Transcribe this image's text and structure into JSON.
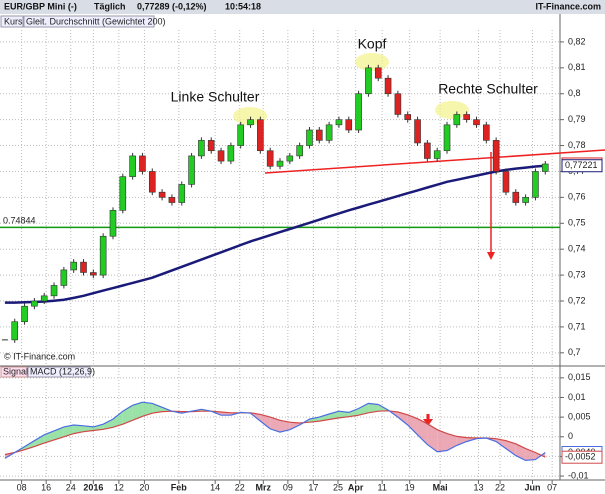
{
  "header": {
    "title": "EUR/GBP Mini (-)",
    "period": "Täglich",
    "quote": "0,77289 (-0,12%)",
    "time": "10:54:18",
    "brand": "IT-Finance.com"
  },
  "chart_data": [
    {
      "type": "candlestick",
      "x": [
        0,
        1,
        2,
        3,
        4,
        5,
        6,
        7,
        8,
        9,
        10,
        11,
        12,
        13,
        14,
        15,
        16,
        17,
        18,
        19,
        20,
        21,
        22,
        23,
        24,
        25,
        26,
        27,
        28,
        29,
        30,
        31,
        32,
        33,
        34,
        35,
        36,
        37,
        38,
        39,
        40,
        41,
        42,
        43,
        44,
        45,
        46,
        47,
        48,
        49,
        50,
        51,
        52,
        53,
        54,
        55
      ],
      "xlim": [
        -0.5,
        56.5
      ],
      "xticks": [
        {
          "value": 1.7,
          "label": "08"
        },
        {
          "value": 4.2,
          "label": "16"
        },
        {
          "value": 6.7,
          "label": "24"
        },
        {
          "value": 9.0,
          "label": "2016"
        },
        {
          "value": 11.6,
          "label": "12"
        },
        {
          "value": 14.2,
          "label": "20"
        },
        {
          "value": 17.7,
          "label": "Feb"
        },
        {
          "value": 21.4,
          "label": "14"
        },
        {
          "value": 23.9,
          "label": "22"
        },
        {
          "value": 26.3,
          "label": "Mrz"
        },
        {
          "value": 28.8,
          "label": "09"
        },
        {
          "value": 31.4,
          "label": "17"
        },
        {
          "value": 33.9,
          "label": "25"
        },
        {
          "value": 35.7,
          "label": "Apr"
        },
        {
          "value": 38.4,
          "label": "11"
        },
        {
          "value": 41.2,
          "label": "19"
        },
        {
          "value": 44.3,
          "label": "Mai"
        },
        {
          "value": 48.2,
          "label": "13"
        },
        {
          "value": 50.4,
          "label": "22"
        },
        {
          "value": 53.7,
          "label": "Jun"
        },
        {
          "value": 55.7,
          "label": "07"
        }
      ],
      "ylim": [
        0.6953,
        0.8246
      ],
      "yticks": [
        {
          "value": 0.7,
          "label": "0,7"
        },
        {
          "value": 0.71,
          "label": "0,71"
        },
        {
          "value": 0.72,
          "label": "0,72"
        },
        {
          "value": 0.73,
          "label": "0,73"
        },
        {
          "value": 0.74,
          "label": "0,74"
        },
        {
          "value": 0.75,
          "label": "0,75"
        },
        {
          "value": 0.76,
          "label": "0,76"
        },
        {
          "value": 0.77,
          "label": "0,77"
        },
        {
          "value": 0.78,
          "label": "0,78"
        },
        {
          "value": 0.79,
          "label": "0,79"
        },
        {
          "value": 0.8,
          "label": "0,8"
        },
        {
          "value": 0.81,
          "label": "0,81"
        },
        {
          "value": 0.82,
          "label": "0,82"
        }
      ],
      "grid": true,
      "up_color": "#22cc22",
      "down_color": "#dd2222",
      "series": [
        {
          "name": "Kurs",
          "color": "#333333",
          "last_label": "0,77289",
          "values": [
            0.705,
            0.712,
            0.718,
            0.72,
            0.722,
            0.726,
            0.732,
            0.735,
            0.731,
            0.73,
            0.745,
            0.755,
            0.768,
            0.776,
            0.77,
            0.762,
            0.76,
            0.758,
            0.765,
            0.776,
            0.782,
            0.778,
            0.774,
            0.78,
            0.788,
            0.79,
            0.778,
            0.772,
            0.774,
            0.776,
            0.78,
            0.786,
            0.782,
            0.788,
            0.79,
            0.786,
            0.8,
            0.81,
            0.806,
            0.8,
            0.792,
            0.79,
            0.781,
            0.775,
            0.778,
            0.788,
            0.792,
            0.79,
            0.788,
            0.782,
            0.77,
            0.762,
            0.758,
            0.76,
            0.77,
            0.77289
          ]
        },
        {
          "name": "Gleit. Durchschnitt (Gewichtet 200)",
          "color": "#1a1a78",
          "last_label": "0,77221",
          "values": [
            0.7194,
            0.7194,
            0.7195,
            0.7196,
            0.7198,
            0.7201,
            0.7205,
            0.7212,
            0.722,
            0.723,
            0.724,
            0.725,
            0.726,
            0.727,
            0.728,
            0.729,
            0.7304,
            0.7318,
            0.7332,
            0.7346,
            0.736,
            0.7374,
            0.7388,
            0.7402,
            0.7416,
            0.743,
            0.7442,
            0.7454,
            0.7466,
            0.7478,
            0.749,
            0.7502,
            0.7514,
            0.7526,
            0.7538,
            0.755,
            0.7561,
            0.7572,
            0.7583,
            0.7594,
            0.7605,
            0.7616,
            0.7627,
            0.7638,
            0.7649,
            0.766,
            0.7668,
            0.7676,
            0.7684,
            0.7692,
            0.77,
            0.7706,
            0.7711,
            0.7715,
            0.7719,
            0.77221
          ]
        }
      ],
      "level": {
        "value": 0.74844,
        "label": "0.74844",
        "color": "#119911"
      },
      "annotations": [
        "Linke Schulter",
        "Kopf",
        "Rechte Schulter"
      ],
      "watermark": "© IT-Finance.com"
    },
    {
      "type": "line",
      "ylim": [
        -0.011,
        0.0175
      ],
      "yticks": [
        {
          "value": -0.01,
          "label": "-0,01"
        },
        {
          "value": -0.005,
          "label": "-0,005"
        },
        0,
        {
          "value": 0.005,
          "label": "0,005"
        },
        {
          "value": 0.01,
          "label": "0,01"
        },
        {
          "value": 0.015,
          "label": "0,015"
        }
      ],
      "grid": true,
      "up_fill": "#88dd99",
      "down_fill": "#e89aa8",
      "series": [
        {
          "name": "Signal",
          "color": "#d04848",
          "last_label": "-0,0052",
          "values": [
            -0.0045,
            -0.004,
            -0.0033,
            -0.0025,
            -0.0016,
            -0.0008,
            0.0,
            0.0008,
            0.0013,
            0.0016,
            0.0019,
            0.0024,
            0.0032,
            0.0042,
            0.0052,
            0.006,
            0.0064,
            0.0065,
            0.0064,
            0.0064,
            0.0065,
            0.0065,
            0.0063,
            0.0061,
            0.0061,
            0.0061,
            0.0057,
            0.005,
            0.0042,
            0.0037,
            0.0035,
            0.0037,
            0.004,
            0.0044,
            0.0048,
            0.0051,
            0.0055,
            0.0061,
            0.0065,
            0.0066,
            0.0063,
            0.0056,
            0.0046,
            0.0033,
            0.0018,
            0.0008,
            0.0001,
            -0.0002,
            -0.0003,
            -0.0003,
            -0.0005,
            -0.001,
            -0.0018,
            -0.003,
            -0.004,
            -0.0052
          ]
        },
        {
          "name": "MACD (12,26,9)",
          "color": "#4a6ee0",
          "last_label": "-0,0040",
          "values": [
            -0.0055,
            -0.004,
            -0.0025,
            -0.001,
            0.0005,
            0.0015,
            0.0025,
            0.003,
            0.0028,
            0.0025,
            0.0032,
            0.0045,
            0.0065,
            0.008,
            0.0088,
            0.0085,
            0.0075,
            0.0065,
            0.006,
            0.0065,
            0.007,
            0.0065,
            0.0055,
            0.0055,
            0.0062,
            0.006,
            0.004,
            0.002,
            0.0012,
            0.0018,
            0.003,
            0.0045,
            0.005,
            0.0058,
            0.0065,
            0.0062,
            0.0072,
            0.0085,
            0.0082,
            0.0068,
            0.005,
            0.003,
            0.0005,
            -0.002,
            -0.0038,
            -0.0035,
            -0.0022,
            -0.0012,
            -0.0005,
            -0.0003,
            -0.0012,
            -0.003,
            -0.0048,
            -0.006,
            -0.0058,
            -0.004
          ]
        }
      ]
    }
  ]
}
